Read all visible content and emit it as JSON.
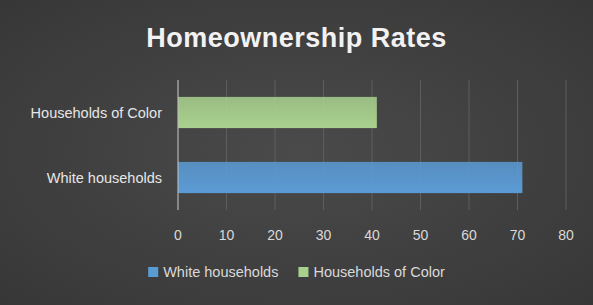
{
  "chart_data": {
    "type": "bar",
    "title": "Homeownership Rates",
    "orientation": "horizontal",
    "categories": [
      "White households",
      "Households of Color"
    ],
    "values": [
      71,
      41
    ],
    "colors": [
      "#5b9bd5",
      "#a9d18e"
    ],
    "xlim": [
      0,
      80
    ],
    "xticks": [
      0,
      10,
      20,
      30,
      40,
      50,
      60,
      70,
      80
    ],
    "grid": true,
    "legend": "bottom"
  }
}
